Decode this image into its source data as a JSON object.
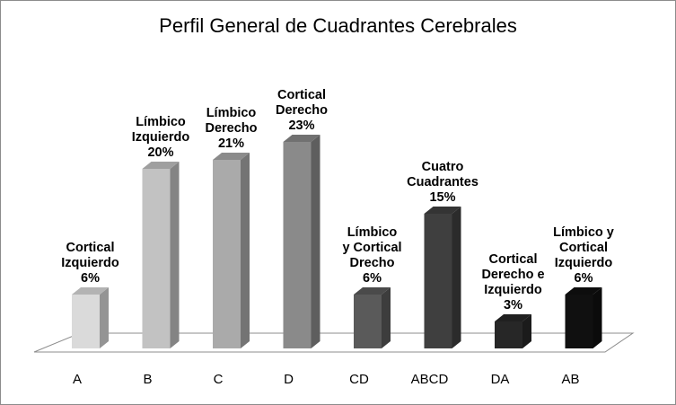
{
  "chart_data": {
    "type": "bar",
    "title": "Perfil General de Cuadrantes Cerebrales",
    "xlabel": "",
    "ylabel": "",
    "categories": [
      "A",
      "B",
      "C",
      "D",
      "CD",
      "ABCD",
      "DA",
      "AB"
    ],
    "values": [
      6,
      20,
      21,
      23,
      6,
      15,
      3,
      6
    ],
    "unit": "%",
    "data_labels": [
      [
        "Cortical",
        "Izquierdo",
        "6%"
      ],
      [
        "Límbico",
        "Izquierdo",
        "20%"
      ],
      [
        "Límbico",
        "Derecho",
        "21%"
      ],
      [
        "Cortical",
        "Derecho",
        "23%"
      ],
      [
        "Límbico",
        "y Cortical",
        "Drecho",
        "6%"
      ],
      [
        "Cuatro",
        "Cuadrantes",
        "15%"
      ],
      [
        "Cortical",
        "Derecho e",
        "Izquierdo",
        "3%"
      ],
      [
        "Límbico y",
        "Cortical",
        "Izquierdo",
        "6%"
      ]
    ],
    "bar_colors": [
      "#dadada",
      "#c2c2c2",
      "#aaaaaa",
      "#8a8a8a",
      "#5a5a5a",
      "#3f3f3f",
      "#272727",
      "#101010"
    ],
    "style": "3d-column",
    "grid": false,
    "legend": "none"
  }
}
